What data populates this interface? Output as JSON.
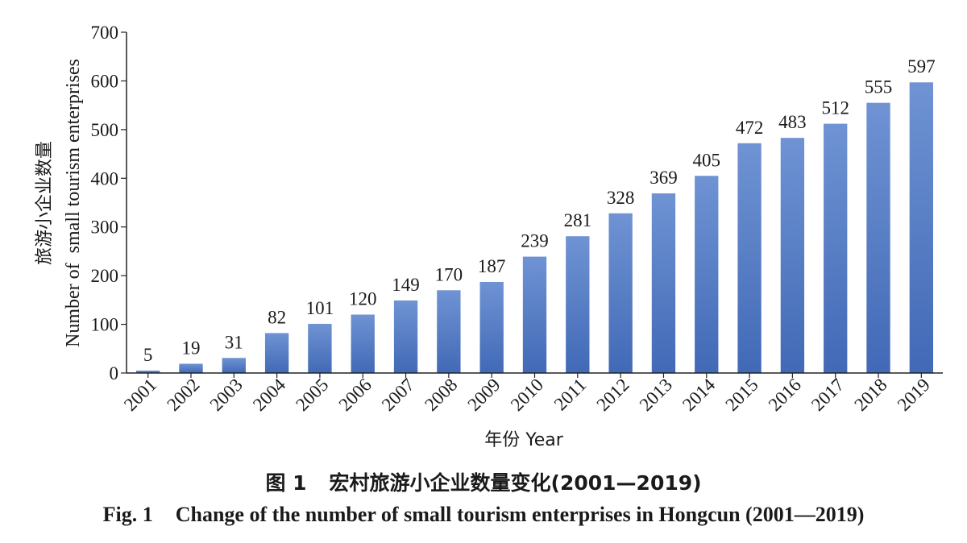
{
  "chart_data": {
    "type": "bar",
    "categories": [
      "2001",
      "2002",
      "2003",
      "2004",
      "2005",
      "2006",
      "2007",
      "2008",
      "2009",
      "2010",
      "2011",
      "2012",
      "2013",
      "2014",
      "2015",
      "2016",
      "2017",
      "2018",
      "2019"
    ],
    "values": [
      5,
      19,
      31,
      82,
      101,
      120,
      149,
      170,
      187,
      239,
      281,
      328,
      369,
      405,
      472,
      483,
      512,
      555,
      597
    ],
    "ylim": [
      0,
      700
    ],
    "yticks": [
      0,
      100,
      200,
      300,
      400,
      500,
      600,
      700
    ],
    "ylabel_cn": "旅游小企业数量",
    "ylabel_en": "Number of  small tourism enterprises",
    "xlabel": "年份 Year",
    "data_labels": true,
    "grid": false,
    "bar_color": "#4f7bc4"
  },
  "caption": {
    "cn_prefix": "图 1",
    "cn_text": "宏村旅游小企业数量变化(2001—2019)",
    "en_prefix": "Fig. 1",
    "en_text": "Change of the number of small tourism enterprises in Hongcun (2001—2019)"
  }
}
